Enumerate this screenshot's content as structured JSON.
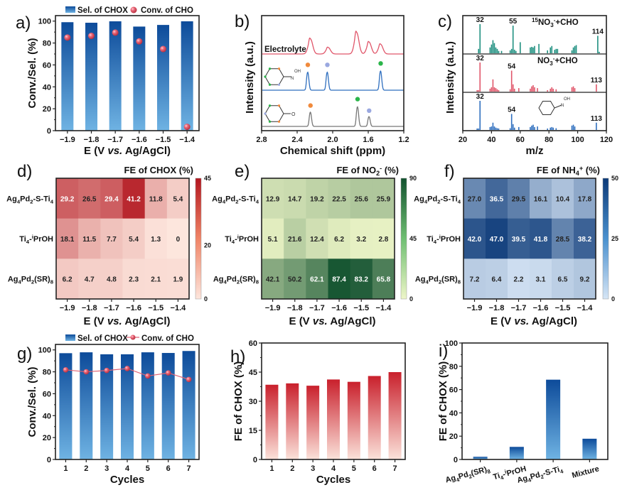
{
  "chart_data": [
    {
      "panel": "a)",
      "type": "bar",
      "categories": [
        "−1.9",
        "−1.8",
        "−1.7",
        "−1.6",
        "−1.5",
        "−1.4"
      ],
      "series": [
        {
          "name": "Sel. of CHOX",
          "kind": "bar",
          "values": [
            99,
            98.5,
            99.8,
            95,
            96.5,
            99.8
          ]
        },
        {
          "name": "Conv. of CHO",
          "kind": "scatter",
          "values": [
            85,
            86.5,
            89.5,
            81.5,
            74.5,
            3.5
          ]
        }
      ],
      "xlabel": "E (V vs. Ag/AgCl)",
      "ylabel": "Conv./Sel. (%)",
      "ylim": [
        0,
        105
      ],
      "yticks": [
        0,
        20,
        40,
        60,
        80,
        100
      ],
      "legend": "top"
    },
    {
      "panel": "b)",
      "type": "line",
      "title": "",
      "xlabel": "Chemical shift (ppm)",
      "ylabel": "Intensity (a.u.)",
      "xlim": [
        2.8,
        1.2
      ],
      "xticks": [
        "2.8",
        "2.4",
        "2.0",
        "1.6",
        "1.2"
      ],
      "series": [
        {
          "name": "Electrolyte",
          "color": "#e0566a",
          "peaks_ppm": [
            2.25,
            2.05,
            1.73,
            1.59,
            1.46
          ],
          "peak_heights": [
            0.7,
            0.3,
            1.0,
            0.55,
            0.45
          ]
        },
        {
          "name": "Cyclohexanone oxime",
          "color": "#2f6fbf",
          "peaks_ppm": [
            2.28,
            2.06,
            1.46
          ],
          "peak_heights": [
            0.75,
            0.75,
            0.8
          ],
          "markers": [
            {
              "ppm": 2.28,
              "color": "#f08a3c"
            },
            {
              "ppm": 2.06,
              "color": "#9aa8e0"
            },
            {
              "ppm": 1.46,
              "color": "#2bb54a"
            }
          ]
        },
        {
          "name": "Cyclohexanone",
          "color": "#777777",
          "peaks_ppm": [
            2.25,
            1.72,
            1.59
          ],
          "peak_heights": [
            0.65,
            0.9,
            0.45
          ],
          "markers": [
            {
              "ppm": 2.25,
              "color": "#f08a3c"
            },
            {
              "ppm": 1.72,
              "color": "#2bb54a"
            },
            {
              "ppm": 1.59,
              "color": "#9aa8e0"
            }
          ]
        }
      ],
      "annotations": [
        "Electrolyte",
        "OH",
        "N",
        "O"
      ]
    },
    {
      "panel": "c)",
      "type": "bar",
      "xlabel": "m/z",
      "ylabel": "Intensity (a.u.)",
      "xlim": [
        20,
        120
      ],
      "xticks": [
        20,
        40,
        60,
        80,
        100,
        120
      ],
      "series": [
        {
          "name": "15NO3-+CHO",
          "color": "#1f9080",
          "labels": [
            "32",
            "55",
            "114"
          ],
          "peaks": [
            [
              31,
              0.15
            ],
            [
              32,
              1.0
            ],
            [
              39,
              0.2
            ],
            [
              40,
              0.3
            ],
            [
              41,
              0.45
            ],
            [
              42,
              0.35
            ],
            [
              43,
              0.2
            ],
            [
              44,
              0.15
            ],
            [
              45,
              0.08
            ],
            [
              47,
              0.08
            ],
            [
              53,
              0.1
            ],
            [
              54,
              0.15
            ],
            [
              55,
              0.95
            ],
            [
              56,
              0.12
            ],
            [
              57,
              0.08
            ],
            [
              60,
              0.38
            ],
            [
              67,
              0.2
            ],
            [
              68,
              0.22
            ],
            [
              69,
              0.2
            ],
            [
              70,
              0.25
            ],
            [
              73,
              0.32
            ],
            [
              79,
              0.1
            ],
            [
              81,
              0.2
            ],
            [
              82,
              0.25
            ],
            [
              84,
              0.12
            ],
            [
              85,
              0.15
            ],
            [
              86,
              0.15
            ],
            [
              96,
              0.1
            ],
            [
              97,
              0.2
            ],
            [
              98,
              0.25
            ],
            [
              99,
              0.28
            ],
            [
              114,
              0.6
            ],
            [
              115,
              0.05
            ]
          ]
        },
        {
          "name": "NO3-+CHO",
          "color": "#e0566a",
          "labels": [
            "32",
            "54",
            "113"
          ],
          "peaks": [
            [
              30,
              0.05
            ],
            [
              31,
              0.05
            ],
            [
              32,
              1.0
            ],
            [
              39,
              0.1
            ],
            [
              40,
              0.15
            ],
            [
              41,
              0.42
            ],
            [
              42,
              0.15
            ],
            [
              43,
              0.12
            ],
            [
              44,
              0.08
            ],
            [
              45,
              0.05
            ],
            [
              53,
              0.08
            ],
            [
              54,
              0.72
            ],
            [
              55,
              0.25
            ],
            [
              56,
              0.1
            ],
            [
              59,
              0.12
            ],
            [
              67,
              0.1
            ],
            [
              68,
              0.18
            ],
            [
              69,
              0.22
            ],
            [
              70,
              0.15
            ],
            [
              72,
              0.12
            ],
            [
              79,
              0.05
            ],
            [
              81,
              0.1
            ],
            [
              82,
              0.15
            ],
            [
              83,
              0.1
            ],
            [
              85,
              0.08
            ],
            [
              96,
              0.15
            ],
            [
              97,
              0.18
            ],
            [
              98,
              0.12
            ],
            [
              113,
              0.25
            ]
          ]
        },
        {
          "name": "Cyclohexanone oxime",
          "color": "#2f6fbf",
          "labels": [
            "32",
            "54",
            "113"
          ],
          "peaks": [
            [
              30,
              0.05
            ],
            [
              31,
              0.05
            ],
            [
              32,
              1.0
            ],
            [
              39,
              0.1
            ],
            [
              40,
              0.12
            ],
            [
              41,
              0.25
            ],
            [
              42,
              0.12
            ],
            [
              43,
              0.08
            ],
            [
              44,
              0.06
            ],
            [
              45,
              0.05
            ],
            [
              53,
              0.06
            ],
            [
              54,
              0.55
            ],
            [
              55,
              0.2
            ],
            [
              56,
              0.08
            ],
            [
              59,
              0.1
            ],
            [
              67,
              0.1
            ],
            [
              68,
              0.15
            ],
            [
              69,
              0.18
            ],
            [
              70,
              0.1
            ],
            [
              72,
              0.12
            ],
            [
              79,
              0.05
            ],
            [
              81,
              0.08
            ],
            [
              82,
              0.1
            ],
            [
              83,
              0.08
            ],
            [
              85,
              0.06
            ],
            [
              96,
              0.15
            ],
            [
              97,
              0.18
            ],
            [
              98,
              0.12
            ],
            [
              113,
              0.25
            ]
          ]
        }
      ],
      "annotations": [
        "15NO3-+CHO",
        "NO3-+CHO",
        "OH",
        "N"
      ]
    },
    {
      "panel": "d)",
      "type": "heatmap",
      "title": "FE of CHOX (%)",
      "xlabel": "E (V vs. Ag/AgCl)",
      "x": [
        "−1.9",
        "−1.8",
        "−1.7",
        "−1.6",
        "−1.5",
        "−1.4"
      ],
      "y": [
        "Ag4Pd2-S-Ti4",
        "Ti4-iPrOH",
        "Ag4Pd2(SR)8"
      ],
      "values": [
        [
          29.2,
          26.5,
          29.4,
          41.2,
          11.8,
          5.4
        ],
        [
          18.1,
          11.5,
          7.7,
          5.4,
          1.3,
          0
        ],
        [
          6.2,
          4.7,
          4.8,
          2.3,
          2.1,
          1.9
        ]
      ],
      "labels": [
        [
          "29.2",
          "26.5",
          "29.4",
          "41.2",
          "11.8",
          "5.4"
        ],
        [
          "18.1",
          "11.5",
          "7.7",
          "5.4",
          "1.3",
          "0"
        ],
        [
          "6.2",
          "4.7",
          "4.8",
          "2.3",
          "2.1",
          "1.9"
        ]
      ],
      "colorbar": {
        "min": 0,
        "max": 45,
        "ticks": [
          "0",
          "20",
          "45"
        ],
        "low": "#fde6dd",
        "high": "#b3161f"
      }
    },
    {
      "panel": "e)",
      "type": "heatmap",
      "title": "FE of NO2- (%)",
      "xlabel": "E (V vs. Ag/AgCl)",
      "x": [
        "−1.9",
        "−1.8",
        "−1.7",
        "−1.6",
        "−1.5",
        "−1.4"
      ],
      "y": [
        "Ag4Pd2-S-Ti4",
        "Ti4-iPrOH",
        "Ag4Pd2(SR)8"
      ],
      "values": [
        [
          12.9,
          14.7,
          19.2,
          22.5,
          25.6,
          25.9
        ],
        [
          5.1,
          21.6,
          12.4,
          6.2,
          3.2,
          2.8
        ],
        [
          42.1,
          50.2,
          62.1,
          87.4,
          83.2,
          65.8
        ]
      ],
      "labels": [
        [
          "12.9",
          "14.7",
          "19.2",
          "22.5",
          "25.6",
          "25.9"
        ],
        [
          "5.1",
          "21.6",
          "12.4",
          "6.2",
          "3.2",
          "2.8"
        ],
        [
          "42.1",
          "50.2",
          "62.1",
          "87.4",
          "83.2",
          "65.8"
        ]
      ],
      "colorbar": {
        "min": 0,
        "max": 90,
        "ticks": [
          "0",
          "45",
          "90"
        ],
        "low": "#eef6c8",
        "high": "#12522f"
      }
    },
    {
      "panel": "f)",
      "type": "heatmap",
      "title": "FE of NH4+ (%)",
      "xlabel": "E (V vs. Ag/AgCl)",
      "x": [
        "−1.9",
        "−1.8",
        "−1.7",
        "−1.6",
        "−1.5",
        "−1.4"
      ],
      "y": [
        "Ag4Pd2-S-Ti4",
        "Ti4-iPrOH",
        "Ag4Pd2(SR)8"
      ],
      "values": [
        [
          27.0,
          36.5,
          29.5,
          16.1,
          10.4,
          17.8
        ],
        [
          42.0,
          47.0,
          39.5,
          41.8,
          28.5,
          38.2
        ],
        [
          7.2,
          6.4,
          2.2,
          3.1,
          6.5,
          9.2
        ]
      ],
      "labels": [
        [
          "27.0",
          "36.5",
          "29.5",
          "16.1",
          "10.4",
          "17.8"
        ],
        [
          "42.0",
          "47.0",
          "39.5",
          "41.8",
          "28.5",
          "38.2"
        ],
        [
          "7.2",
          "6.4",
          "2.2",
          "3.1",
          "6.5",
          "9.2"
        ]
      ],
      "colorbar": {
        "min": 0,
        "max": 50,
        "ticks": [
          "0",
          "25",
          "50"
        ],
        "low": "#d6e5f5",
        "high": "#0c3a78"
      }
    },
    {
      "panel": "g)",
      "type": "bar",
      "categories": [
        "1",
        "2",
        "3",
        "4",
        "5",
        "6",
        "7"
      ],
      "series": [
        {
          "name": "Sel. of CHOX",
          "kind": "bar",
          "values": [
            97,
            97.8,
            96,
            96,
            97.8,
            97.2,
            99
          ]
        },
        {
          "name": "Conv. of CHO",
          "kind": "line",
          "values": [
            81.8,
            80,
            81.2,
            83,
            76.2,
            79,
            73
          ]
        }
      ],
      "xlabel": "Cycles",
      "ylabel": "Conv./Sel. (%)",
      "ylim": [
        0,
        105
      ],
      "yticks": [
        0,
        20,
        40,
        60,
        80,
        100
      ],
      "legend": "top"
    },
    {
      "panel": "h)",
      "type": "bar",
      "categories": [
        "1",
        "2",
        "3",
        "4",
        "5",
        "6",
        "7"
      ],
      "values": [
        38.5,
        39.2,
        38,
        41.2,
        40,
        43,
        45
      ],
      "xlabel": "Cycles",
      "ylabel": "FE of CHOX (%)",
      "ylim": [
        0,
        60
      ],
      "yticks": [
        0,
        15,
        30,
        45,
        60
      ]
    },
    {
      "panel": "i)",
      "type": "bar",
      "categories": [
        "Ag4Pd2(SR)8",
        "Ti4-iPrOH",
        "Ag4Pd2-S-Ti4",
        "Mixture"
      ],
      "values": [
        2.3,
        10.8,
        68.5,
        17.8
      ],
      "xlabel": "",
      "ylabel": "FE of CHOX (%)",
      "ylim": [
        0,
        100
      ],
      "yticks": [
        0,
        20,
        40,
        60,
        80,
        100
      ]
    }
  ],
  "labels": {
    "a": "a)",
    "b": "b)",
    "c": "c)",
    "d": "d)",
    "e": "e)",
    "f": "f)",
    "g": "g)",
    "h": "h)",
    "i": "i)"
  }
}
